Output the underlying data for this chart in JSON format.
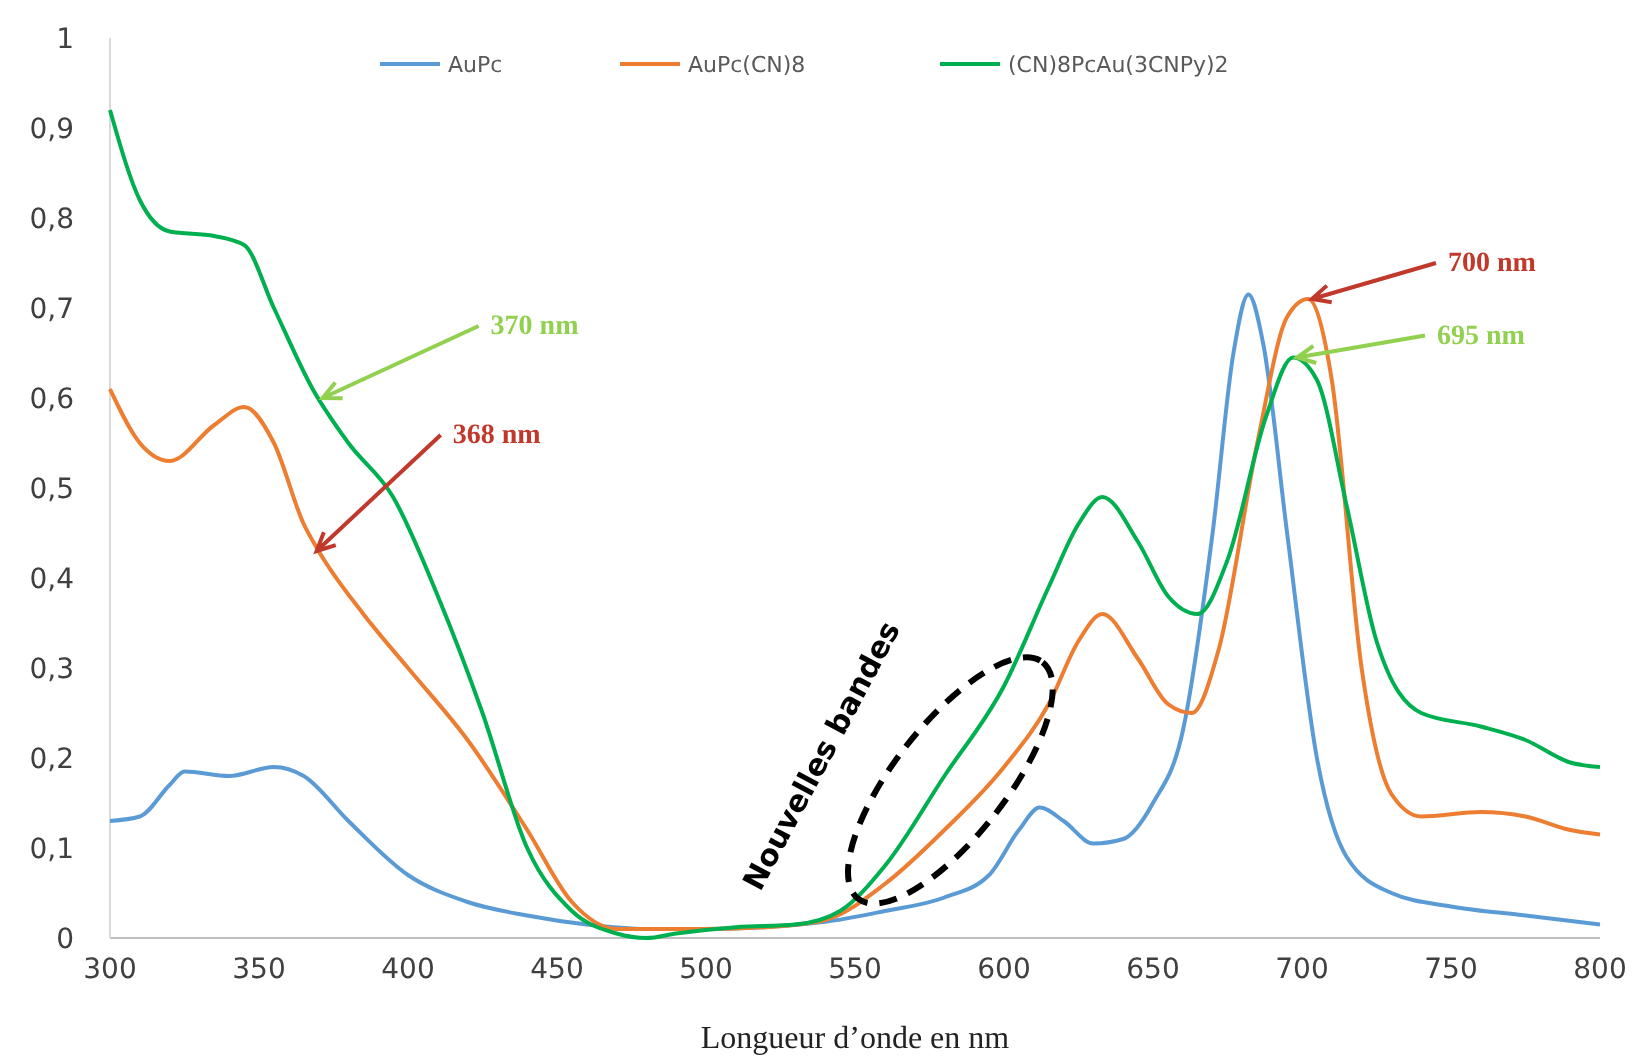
{
  "chart_data": {
    "type": "line",
    "xlabel": "Longueur d’onde en nm",
    "x": [
      300,
      310,
      320,
      325,
      340,
      355,
      365,
      380,
      400,
      420,
      440,
      460,
      480,
      500,
      520,
      540,
      560,
      580,
      595,
      605,
      612,
      620,
      630,
      640,
      650,
      660,
      670,
      677,
      682,
      687,
      695,
      705,
      715,
      730,
      750,
      775,
      800
    ],
    "xlim": [
      300,
      800
    ],
    "xticks": [
      300,
      350,
      400,
      450,
      500,
      550,
      600,
      650,
      700,
      750,
      800
    ],
    "ylim": [
      0,
      1
    ],
    "yticks": [
      0,
      {
        "value": 0.1,
        "label": "0,1"
      },
      {
        "value": 0.2,
        "label": "0,2"
      },
      {
        "value": 0.3,
        "label": "0,3"
      },
      {
        "value": 0.4,
        "label": "0,4"
      },
      {
        "value": 0.5,
        "label": "0,5"
      },
      {
        "value": 0.6,
        "label": "0,6"
      },
      {
        "value": 0.7,
        "label": "0,7"
      },
      {
        "value": 0.8,
        "label": "0,8"
      },
      {
        "value": 0.9,
        "label": "0,9"
      },
      1
    ],
    "grid": false,
    "legend": "top",
    "line_style": "solid",
    "marker": "none",
    "series": [
      {
        "name": "AuPc",
        "color": "#5b9bd5",
        "values": [
          0.13,
          0.135,
          0.17,
          0.185,
          0.18,
          0.19,
          0.18,
          0.13,
          0.07,
          0.04,
          0.025,
          0.015,
          0.01,
          0.01,
          null,
          0.018,
          0.03,
          0.045,
          0.07,
          0.12,
          0.145,
          0.13,
          0.105,
          0.11,
          0.15,
          0.23,
          0.45,
          0.65,
          0.715,
          0.66,
          0.45,
          0.2,
          0.09,
          0.05,
          0.035,
          0.025,
          0.015
        ]
      },
      {
        "name": "AuPc(CN)8",
        "color": "#ed7d31",
        "x": [
          300,
          310,
          320,
          335,
          345,
          355,
          365,
          370,
          385,
          400,
          420,
          440,
          455,
          470,
          500,
          520,
          540,
          560,
          580,
          600,
          615,
          625,
          633,
          645,
          655,
          663,
          672,
          685,
          695,
          702,
          710,
          720,
          730,
          740,
          760,
          775,
          790,
          800
        ],
        "values": [
          0.61,
          0.55,
          0.53,
          0.57,
          0.59,
          0.55,
          0.46,
          0.43,
          0.36,
          0.3,
          0.22,
          0.12,
          0.04,
          0.01,
          0.01,
          0.012,
          0.02,
          0.06,
          0.12,
          0.19,
          0.26,
          0.33,
          0.36,
          0.31,
          0.26,
          0.25,
          0.32,
          0.55,
          0.69,
          0.71,
          0.62,
          0.3,
          0.16,
          0.135,
          0.14,
          0.135,
          0.12,
          0.115
        ]
      },
      {
        "name": "(CN)8PcAu(3CNPy)2",
        "color": "#00b050",
        "x": [
          300,
          310,
          320,
          335,
          345,
          355,
          368,
          380,
          395,
          410,
          425,
          440,
          455,
          470,
          480,
          490,
          510,
          530,
          545,
          560,
          580,
          600,
          615,
          625,
          633,
          645,
          655,
          665,
          675,
          688,
          697,
          705,
          715,
          725,
          740,
          760,
          775,
          790,
          800
        ],
        "values": [
          0.92,
          0.82,
          0.785,
          0.78,
          0.77,
          0.7,
          0.61,
          0.55,
          0.49,
          0.38,
          0.25,
          0.1,
          0.03,
          0.005,
          0,
          0.005,
          0.012,
          0.015,
          0.03,
          0.08,
          0.18,
          0.28,
          0.39,
          0.46,
          0.49,
          0.44,
          0.38,
          0.36,
          0.42,
          0.58,
          0.645,
          0.62,
          0.48,
          0.33,
          0.25,
          0.235,
          0.22,
          0.195,
          0.19
        ]
      }
    ],
    "annotations": [
      {
        "text": "370 nm",
        "x": 370,
        "y": 0.6
      },
      {
        "text": "368 nm",
        "x": 368,
        "y": 0.43
      },
      {
        "text": "700 nm",
        "x": 702,
        "y": 0.71
      },
      {
        "text": "695 nm",
        "x": 697,
        "y": 0.645
      },
      "Nouvelles bandes"
    ]
  }
}
